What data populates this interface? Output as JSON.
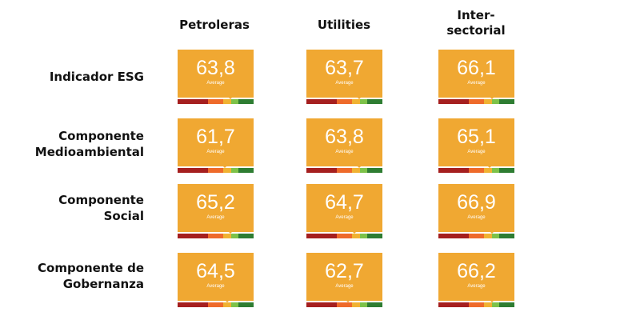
{
  "columns": [
    "Petroleras",
    "Utilities",
    "Inter-\nsectorial"
  ],
  "rows": [
    {
      "label": "Indicador ESG",
      "values": [
        "63,8",
        "63,7",
        "66,1"
      ]
    },
    {
      "label": "Componente Medioambiental",
      "values": [
        "61,7",
        "63,8",
        "65,1"
      ]
    },
    {
      "label": "Componente Social",
      "values": [
        "65,2",
        "64,7",
        "66,9"
      ]
    },
    {
      "label": "Componente de Gobernanza",
      "values": [
        "64,5",
        "62,7",
        "66,2"
      ]
    }
  ],
  "card_sublabel": "Average",
  "colors": {
    "card": "#f0a832",
    "scale": [
      "#a51f1f",
      "#ee6a2a",
      "#f0b232",
      "#7dc249",
      "#2e7d32"
    ]
  }
}
